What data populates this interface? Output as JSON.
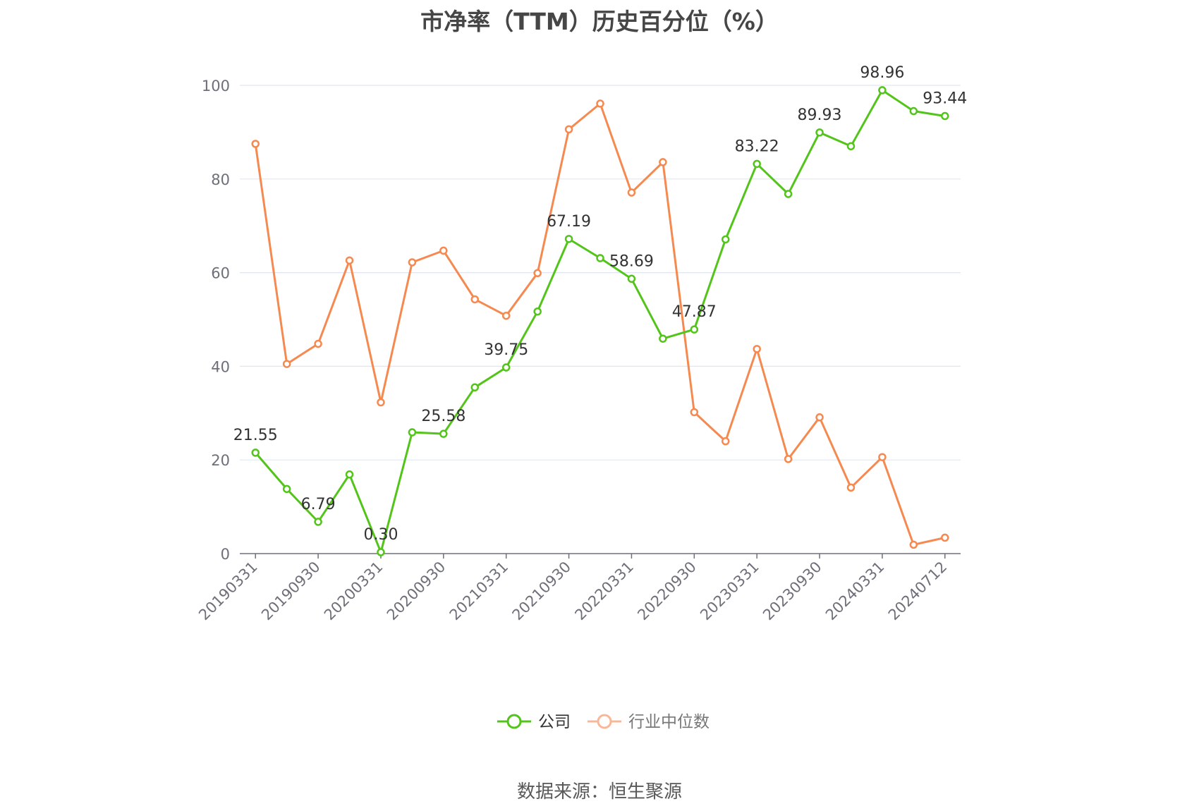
{
  "chart_data": {
    "type": "line",
    "title": "市净率（TTM）历史百分位（%）",
    "x": [
      "20190331",
      "20190630",
      "20190930",
      "20191231",
      "20200331",
      "20200630",
      "20200930",
      "20201231",
      "20210331",
      "20210630",
      "20210930",
      "20211231",
      "20220331",
      "20220630",
      "20220930",
      "20221231",
      "20230331",
      "20230630",
      "20230930",
      "20231231",
      "20240331",
      "20240630",
      "20240712"
    ],
    "x_tick_labels": [
      "20190331",
      "20190930",
      "20200331",
      "20200930",
      "20210331",
      "20210930",
      "20220331",
      "20220930",
      "20230331",
      "20230930",
      "20240331",
      "20240712"
    ],
    "ylim": [
      0,
      100
    ],
    "y_ticks": [
      0,
      20,
      40,
      60,
      80,
      100
    ],
    "grid": true,
    "legend_position": "bottom",
    "series": [
      {
        "name": "公司",
        "color": "#52c41a",
        "values": [
          21.55,
          13.8,
          6.79,
          16.9,
          0.3,
          25.9,
          25.58,
          35.5,
          39.75,
          51.7,
          67.19,
          63.1,
          58.69,
          45.9,
          47.87,
          67.1,
          83.22,
          76.8,
          89.93,
          87.0,
          98.96,
          94.5,
          93.44
        ],
        "data_labels": {
          "0": "21.55",
          "2": "6.79",
          "4": "0.30",
          "6": "25.58",
          "8": "39.75",
          "10": "67.19",
          "12": "58.69",
          "14": "47.87",
          "16": "83.22",
          "18": "89.93",
          "20": "98.96",
          "22": "93.44"
        }
      },
      {
        "name": "行业中位数",
        "color": "#f5894f",
        "values": [
          87.5,
          40.5,
          44.8,
          62.6,
          32.3,
          62.2,
          64.7,
          54.3,
          50.8,
          59.9,
          90.6,
          96.1,
          77.1,
          83.6,
          30.2,
          24.0,
          43.7,
          20.2,
          29.1,
          14.1,
          20.6,
          1.9,
          3.4
        ]
      }
    ]
  },
  "source": "数据来源：恒生聚源"
}
